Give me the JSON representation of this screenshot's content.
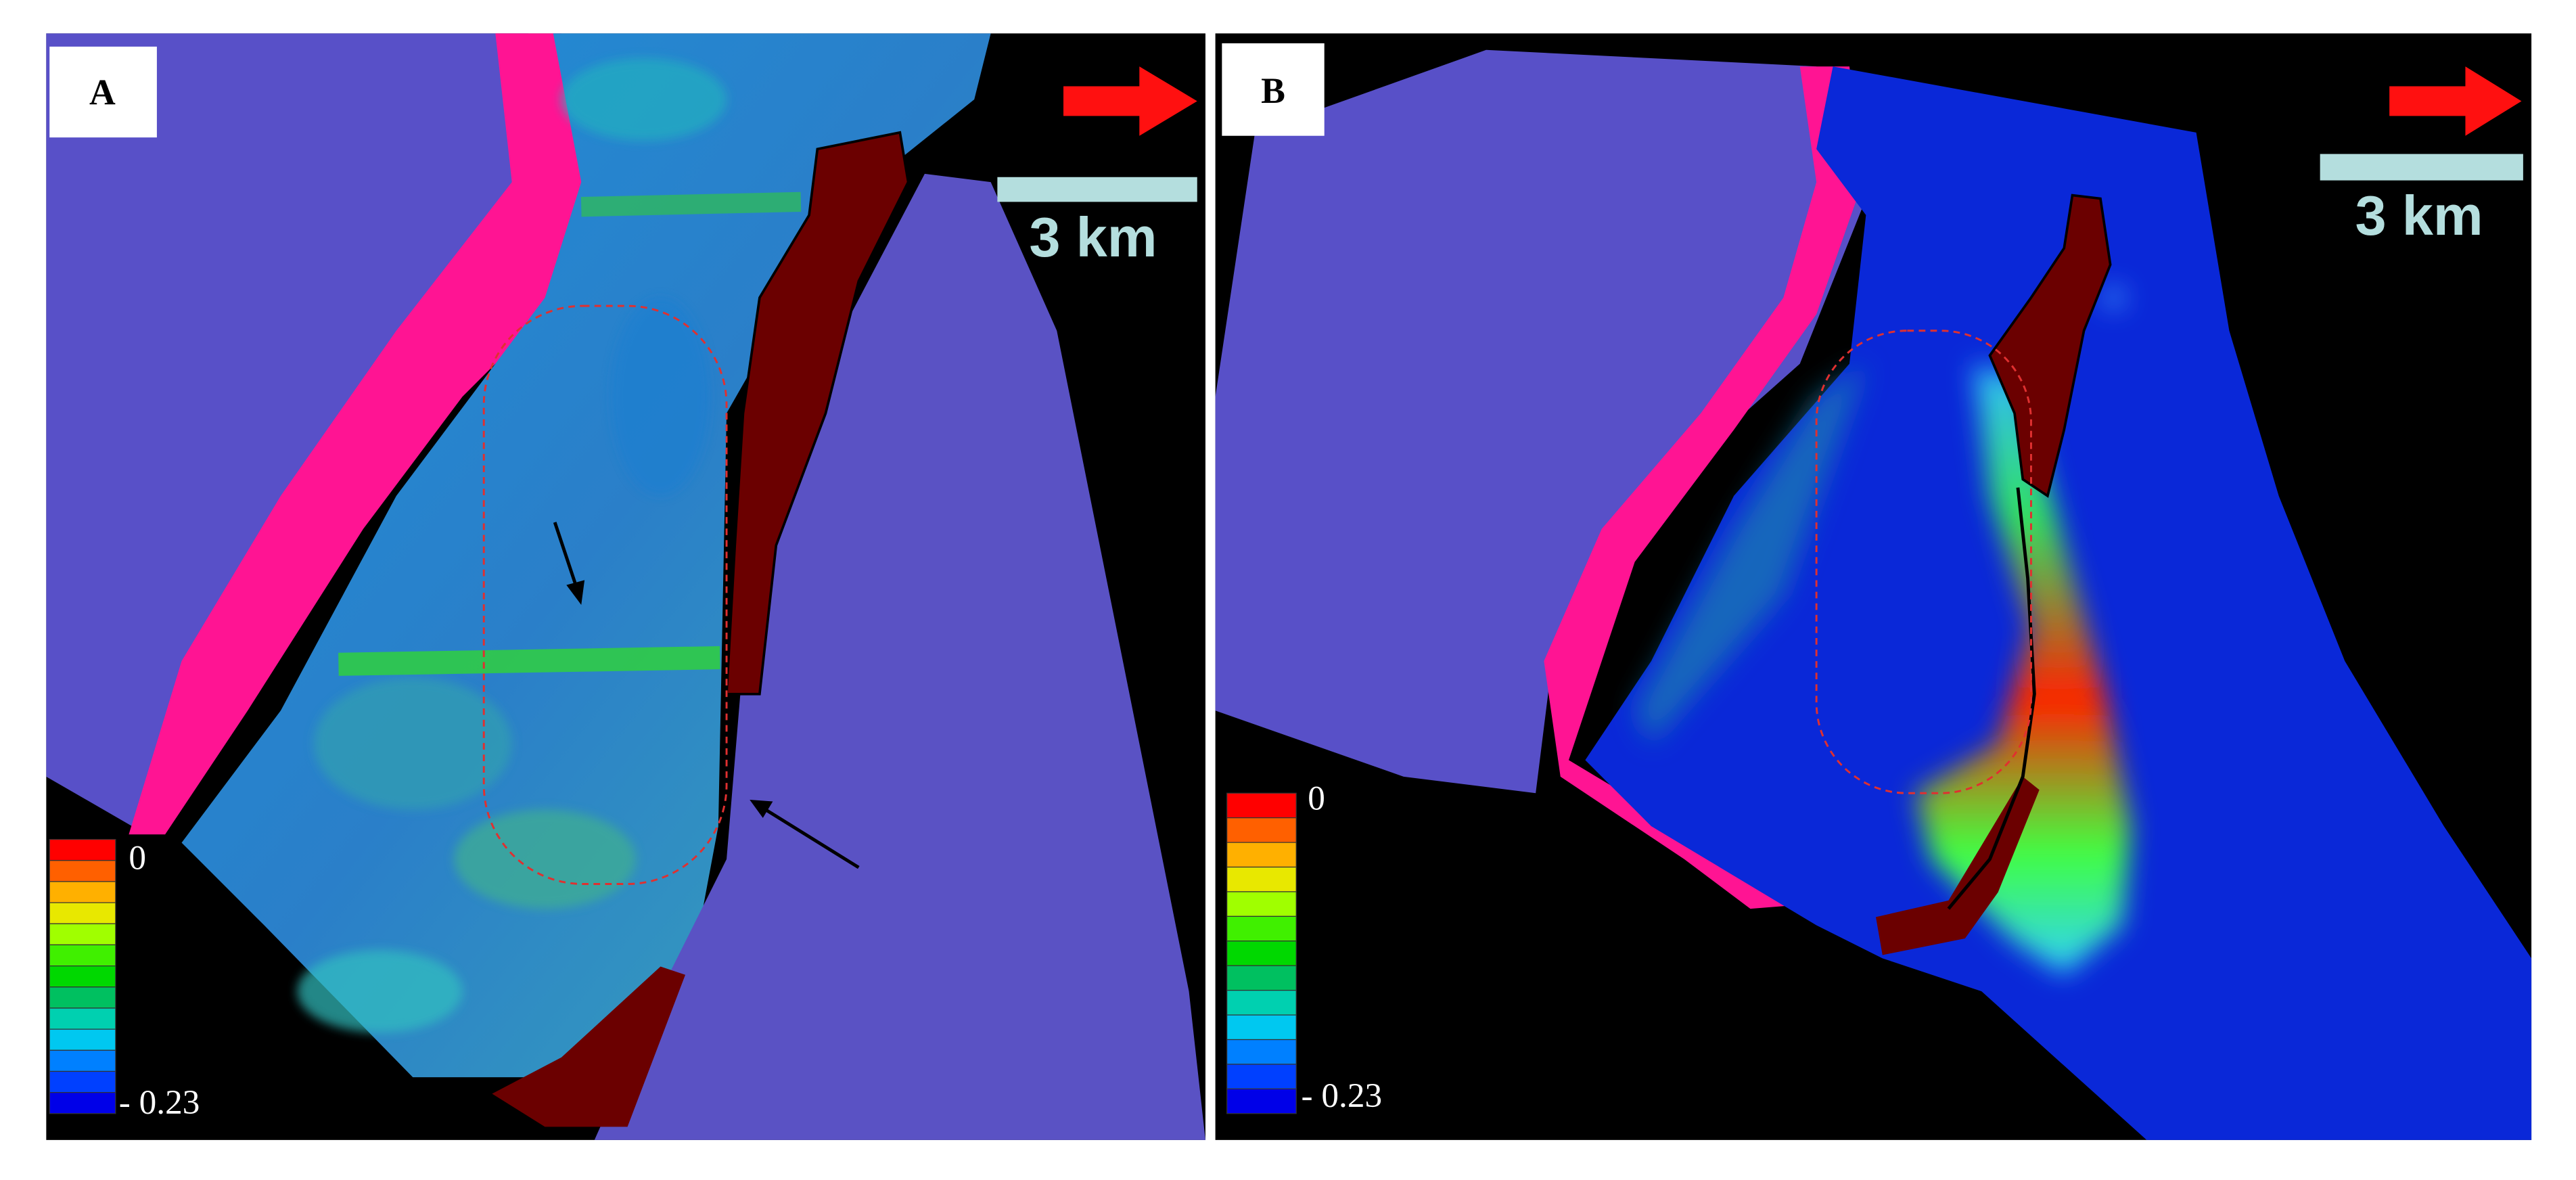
{
  "panels": [
    {
      "label": "A",
      "scale_label": "3 km",
      "colorbar": {
        "top_label": "0",
        "bottom_label": "- 0.23"
      }
    },
    {
      "label": "B",
      "scale_label": "3 km",
      "colorbar": {
        "top_label": "0",
        "bottom_label": "- 0.23"
      }
    }
  ]
}
